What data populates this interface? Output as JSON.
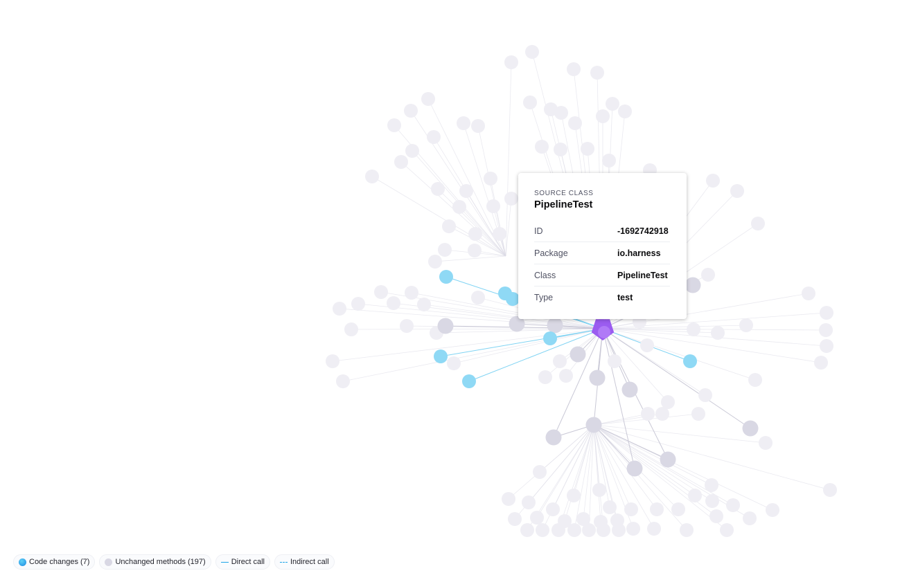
{
  "tooltip": {
    "kicker": "SOURCE CLASS",
    "title": "PipelineTest",
    "rows": [
      {
        "key": "ID",
        "value": "-1692742918"
      },
      {
        "key": "Package",
        "value": "io.harness"
      },
      {
        "key": "Class",
        "value": "PipelineTest"
      },
      {
        "key": "Type",
        "value": "test"
      }
    ]
  },
  "legend": {
    "code_changes": "Code changes (7)",
    "unchanged": "Unchanged methods (197)",
    "direct": "Direct call",
    "indirect": "Indirect call"
  },
  "colors": {
    "changed": "#8fd9f5",
    "unchanged": "#d9d8e4",
    "faded": "#efeef4",
    "source": "#9b5cf0",
    "edge_changed": "#7fd3f3",
    "edge": "#dcdbe6"
  }
}
